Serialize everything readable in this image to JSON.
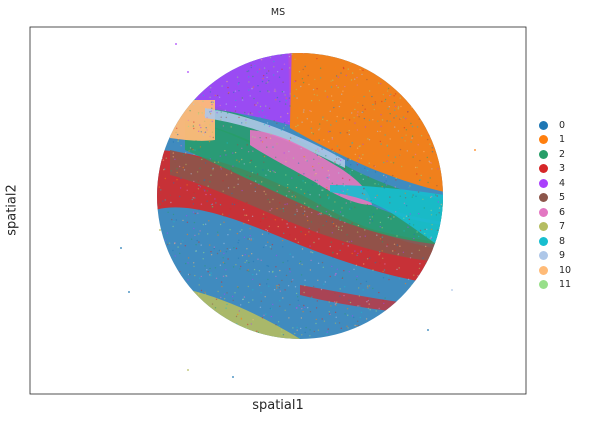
{
  "chart_data": {
    "type": "scatter",
    "title": "MS",
    "xlabel": "spatial1",
    "ylabel": "spatial2",
    "grid": false,
    "legend_position": "right",
    "legend": [
      {
        "label": "0",
        "color": "#1f77b4"
      },
      {
        "label": "1",
        "color": "#ff7f0e"
      },
      {
        "label": "2",
        "color": "#279e68"
      },
      {
        "label": "3",
        "color": "#d62728"
      },
      {
        "label": "4",
        "color": "#aa40fc"
      },
      {
        "label": "5",
        "color": "#8c564b"
      },
      {
        "label": "6",
        "color": "#e377c2"
      },
      {
        "label": "7",
        "color": "#b5bd61"
      },
      {
        "label": "8",
        "color": "#17becf"
      },
      {
        "label": "9",
        "color": "#aec7e8"
      },
      {
        "label": "10",
        "color": "#ffbb78"
      },
      {
        "label": "11",
        "color": "#98df8a"
      }
    ]
  }
}
